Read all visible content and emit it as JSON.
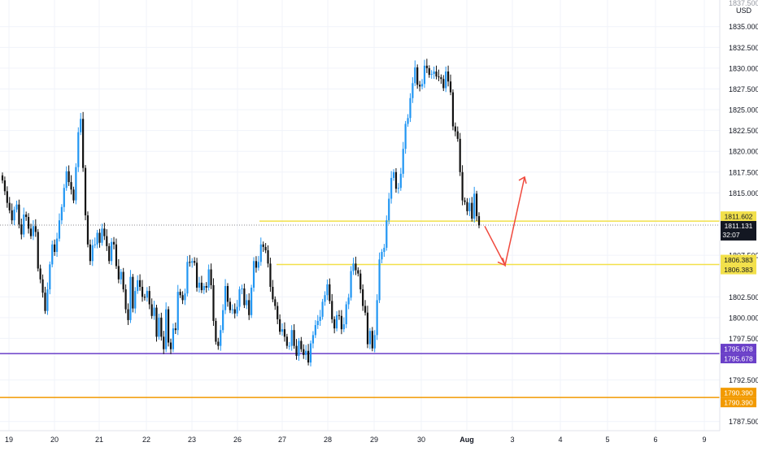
{
  "chart_data": {
    "type": "candlestick",
    "currency_label": "USD",
    "x_tick_labels": [
      "19",
      "20",
      "21",
      "22",
      "23",
      "26",
      "27",
      "28",
      "29",
      "30",
      "Aug",
      "3",
      "4",
      "5",
      "6",
      "9"
    ],
    "y_tick_labels": [
      "1835.000",
      "1832.500",
      "1830.000",
      "1827.500",
      "1825.000",
      "1822.500",
      "1820.000",
      "1817.500",
      "1815.000",
      "1807.500",
      "1802.500",
      "1800.000",
      "1797.500",
      "1792.500",
      "1787.500"
    ],
    "y_top_partial_label": "1837.500",
    "ylim": [
      1786.4,
      1838.2
    ],
    "current_price": {
      "label": "1811.131",
      "countdown": "32:07",
      "value": 1811.131
    },
    "horizontal_levels": [
      {
        "value": 1811.602,
        "color": "#f2e04a",
        "labels": [
          "1811.602",
          "1811.602"
        ]
      },
      {
        "value": 1806.383,
        "color": "#f2e04a",
        "labels": [
          "1806.383",
          "1806.383"
        ]
      },
      {
        "value": 1795.678,
        "color": "#6a3fc8",
        "labels": [
          "1795.678",
          "1795.678"
        ]
      },
      {
        "value": 1790.39,
        "color": "#f29a00",
        "labels": [
          "1790.390",
          "1790.390"
        ]
      }
    ],
    "projection_arrow": {
      "color": "#f04a3e",
      "points": [
        [
          1811.0,
          1806.3
        ],
        [
          1810.8,
          1816.9
        ]
      ]
    },
    "colors": {
      "up": "#2196f3",
      "down": "#111111",
      "grid": "#f0f3fa",
      "axis_text": "#131722"
    },
    "candles_close": [
      1816.5,
      1815.2,
      1813.8,
      1812.9,
      1811.7,
      1813.0,
      1813.6,
      1811.2,
      1810.0,
      1812.4,
      1812.1,
      1810.7,
      1809.8,
      1811.0,
      1810.3,
      1805.9,
      1804.6,
      1803.0,
      1800.8,
      1803.4,
      1806.4,
      1808.8,
      1807.9,
      1809.5,
      1811.7,
      1813.3,
      1815.6,
      1817.6,
      1816.3,
      1815.4,
      1814.1,
      1818.1,
      1822.3,
      1823.9,
      1818.0,
      1812.3,
      1808.8,
      1806.8,
      1808.7,
      1808.8,
      1810.2,
      1809.0,
      1810.7,
      1809.8,
      1808.6,
      1806.8,
      1809.1,
      1808.8,
      1806.2,
      1804.6,
      1805.5,
      1803.4,
      1801.0,
      1799.7,
      1804.9,
      1801.1,
      1803.2,
      1804.5,
      1803.7,
      1802.5,
      1802.4,
      1803.2,
      1801.6,
      1800.2,
      1801.2,
      1797.7,
      1800.0,
      1797.7,
      1796.2,
      1801.0,
      1797.0,
      1796.2,
      1798.7,
      1798.5,
      1803.1,
      1802.7,
      1802.1,
      1802.9,
      1806.7,
      1806.6,
      1806.8,
      1806.6,
      1803.6,
      1804.2,
      1803.3,
      1803.8,
      1803.6,
      1805.8,
      1803.9,
      1799.6,
      1797.1,
      1796.6,
      1798.5,
      1800.9,
      1803.8,
      1801.9,
      1800.9,
      1801.0,
      1800.5,
      1801.3,
      1803.4,
      1803.5,
      1801.5,
      1802.1,
      1800.3,
      1803.6,
      1806.8,
      1806.0,
      1806.7,
      1808.8,
      1808.5,
      1808.1,
      1806.5,
      1803.7,
      1802.2,
      1801.4,
      1799.8,
      1798.3,
      1798.6,
      1797.7,
      1796.6,
      1796.6,
      1798.5,
      1796.6,
      1795.4,
      1797.2,
      1796.2,
      1795.5,
      1796.0,
      1794.6,
      1796.9,
      1797.9,
      1799.1,
      1799.6,
      1800.1,
      1801.9,
      1802.7,
      1804.0,
      1802.0,
      1799.8,
      1798.7,
      1800.3,
      1800.2,
      1798.6,
      1799.2,
      1801.6,
      1802.4,
      1805.6,
      1806.5,
      1805.7,
      1805.3,
      1803.4,
      1801.4,
      1800.6,
      1796.8,
      1798.4,
      1796.3,
      1797.9,
      1802.1,
      1807.0,
      1807.9,
      1808.4,
      1811.7,
      1814.3,
      1816.8,
      1817.5,
      1815.5,
      1815.6,
      1817.3,
      1820.3,
      1823.3,
      1824.0,
      1826.4,
      1828.2,
      1830.1,
      1828.0,
      1827.8,
      1828.1,
      1830.3,
      1830.0,
      1829.2,
      1829.3,
      1829.6,
      1829.0,
      1828.9,
      1828.7,
      1827.6,
      1829.6,
      1828.4,
      1827.1,
      1823.0,
      1822.4,
      1821.5,
      1817.5,
      1814.1,
      1813.9,
      1812.8,
      1813.8,
      1811.9,
      1814.9,
      1812.2,
      1811.1
    ]
  }
}
